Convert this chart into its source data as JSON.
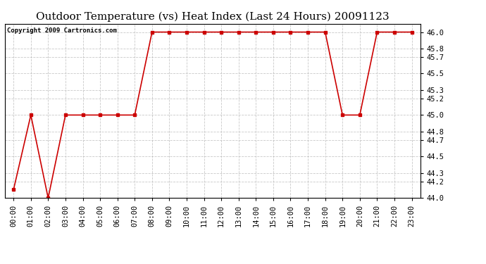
{
  "title": "Outdoor Temperature (vs) Heat Index (Last 24 Hours) 20091123",
  "copyright_text": "Copyright 2009 Cartronics.com",
  "x_labels": [
    "00:00",
    "01:00",
    "02:00",
    "03:00",
    "04:00",
    "05:00",
    "06:00",
    "07:00",
    "08:00",
    "09:00",
    "10:00",
    "11:00",
    "12:00",
    "13:00",
    "14:00",
    "15:00",
    "16:00",
    "17:00",
    "18:00",
    "19:00",
    "20:00",
    "21:00",
    "22:00",
    "23:00"
  ],
  "y_values": [
    44.1,
    45.0,
    44.0,
    45.0,
    45.0,
    45.0,
    45.0,
    45.0,
    46.0,
    46.0,
    46.0,
    46.0,
    46.0,
    46.0,
    46.0,
    46.0,
    46.0,
    46.0,
    46.0,
    45.0,
    45.0,
    46.0,
    46.0,
    46.0
  ],
  "line_color": "#cc0000",
  "marker": "s",
  "marker_size": 2.5,
  "line_width": 1.2,
  "ylim": [
    44.0,
    46.1
  ],
  "yticks": [
    44.0,
    44.2,
    44.3,
    44.5,
    44.7,
    44.8,
    45.0,
    45.2,
    45.3,
    45.5,
    45.7,
    45.8,
    46.0
  ],
  "background_color": "#ffffff",
  "plot_bg_color": "#ffffff",
  "grid_color": "#bbbbbb",
  "title_fontsize": 11,
  "copyright_fontsize": 6.5,
  "tick_fontsize": 7.5
}
